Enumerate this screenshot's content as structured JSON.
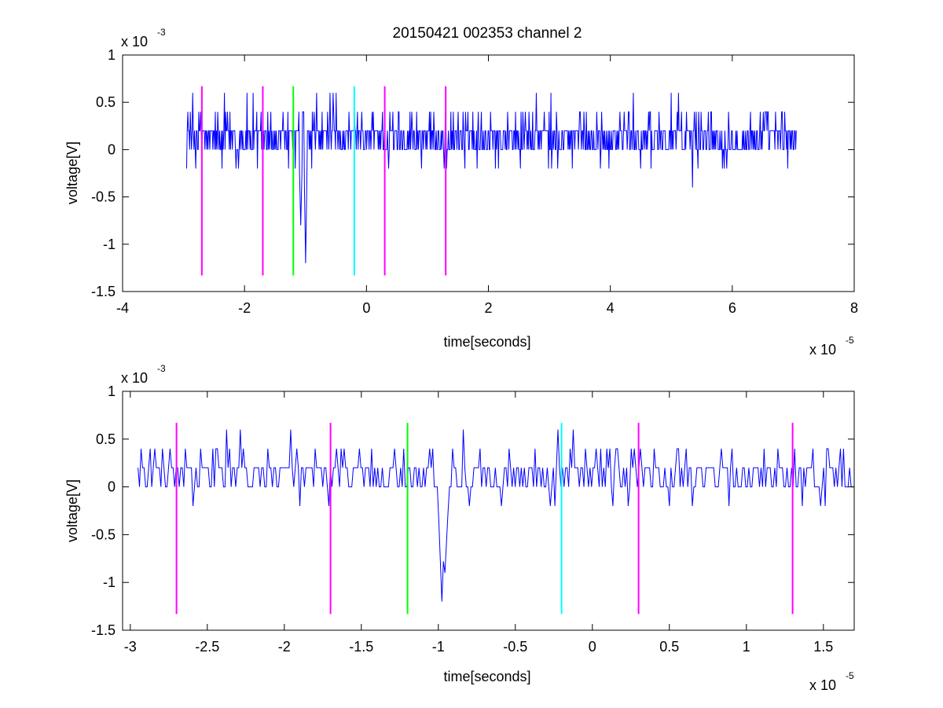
{
  "chart_data": [
    {
      "type": "line",
      "title": "20150421 002353 channel 2",
      "xlabel": "time[seconds]",
      "ylabel": "voltage[V]",
      "x_multiplier": {
        "base": "x 10",
        "exp": "-5"
      },
      "y_multiplier": {
        "base": "x 10",
        "exp": "-3"
      },
      "xlim": [
        -4,
        8
      ],
      "ylim": [
        -1.5,
        1
      ],
      "x_ticks": [
        -4,
        -2,
        0,
        2,
        4,
        6,
        8
      ],
      "x_tick_labels": [
        "-4",
        "-2",
        "0",
        "2",
        "4",
        "6",
        "8"
      ],
      "y_ticks": [
        -1.5,
        -1,
        -0.5,
        0,
        0.5,
        1
      ],
      "y_tick_labels": [
        "-1.5",
        "-1",
        "-0.5",
        "0",
        "0.5",
        "1"
      ],
      "grid": false,
      "series": [
        {
          "color": "#0000ff",
          "x_range": [
            -2.95,
            7.05
          ],
          "levels": [
            0,
            0.2,
            0.4,
            0.6
          ],
          "dips": [
            {
              "x": -1.0,
              "y": -1.2
            },
            {
              "x": -1.08,
              "y": -0.8
            },
            {
              "x": 5.35,
              "y": -0.4
            },
            {
              "x": -1.28,
              "y": -0.2
            }
          ]
        }
      ],
      "vertical_lines": [
        {
          "x": -2.7,
          "color": "#ff00ff",
          "y_range": [
            -1.33,
            0.67
          ]
        },
        {
          "x": -1.7,
          "color": "#ff00ff",
          "y_range": [
            -1.33,
            0.67
          ]
        },
        {
          "x": -1.2,
          "color": "#00ff00",
          "y_range": [
            -1.33,
            0.67
          ]
        },
        {
          "x": -0.2,
          "color": "#00ffff",
          "y_range": [
            -1.33,
            0.67
          ]
        },
        {
          "x": 0.3,
          "color": "#ff00ff",
          "y_range": [
            -1.33,
            0.67
          ]
        },
        {
          "x": 1.3,
          "color": "#ff00ff",
          "y_range": [
            -1.33,
            0.67
          ]
        }
      ]
    },
    {
      "type": "line",
      "title": "",
      "xlabel": "time[seconds]",
      "ylabel": "voltage[V]",
      "x_multiplier": {
        "base": "x 10",
        "exp": "-5"
      },
      "y_multiplier": {
        "base": "x 10",
        "exp": "-3"
      },
      "xlim": [
        -3.05,
        1.7
      ],
      "ylim": [
        -1.5,
        1
      ],
      "x_ticks": [
        -3,
        -2.5,
        -2,
        -1.5,
        -1,
        -0.5,
        0,
        0.5,
        1,
        1.5
      ],
      "x_tick_labels": [
        "-3",
        "-2.5",
        "-2",
        "-1.5",
        "-1",
        "-0.5",
        "0",
        "0.5",
        "1",
        "1.5"
      ],
      "y_ticks": [
        -1.5,
        -1,
        -0.5,
        0,
        0.5,
        1
      ],
      "y_tick_labels": [
        "-1.5",
        "-1",
        "-0.5",
        "0",
        "0.5",
        "1"
      ],
      "grid": false,
      "series": [
        {
          "color": "#0000ff",
          "x_range": [
            -2.95,
            1.7
          ],
          "levels": [
            0,
            0.2,
            0.4,
            0.6
          ],
          "dips": [
            {
              "x": -0.98,
              "y": -1.2
            },
            {
              "x": -0.96,
              "y": -0.9
            },
            {
              "x": -1.71,
              "y": -0.2
            }
          ]
        }
      ],
      "vertical_lines": [
        {
          "x": -2.7,
          "color": "#ff00ff",
          "y_range": [
            -1.33,
            0.67
          ]
        },
        {
          "x": -1.7,
          "color": "#ff00ff",
          "y_range": [
            -1.33,
            0.67
          ]
        },
        {
          "x": -1.2,
          "color": "#00ff00",
          "y_range": [
            -1.33,
            0.67
          ]
        },
        {
          "x": -0.2,
          "color": "#00ffff",
          "y_range": [
            -1.33,
            0.67
          ]
        },
        {
          "x": 0.3,
          "color": "#ff00ff",
          "y_range": [
            -1.33,
            0.67
          ]
        },
        {
          "x": 1.3,
          "color": "#ff00ff",
          "y_range": [
            -1.33,
            0.67
          ]
        }
      ]
    }
  ]
}
